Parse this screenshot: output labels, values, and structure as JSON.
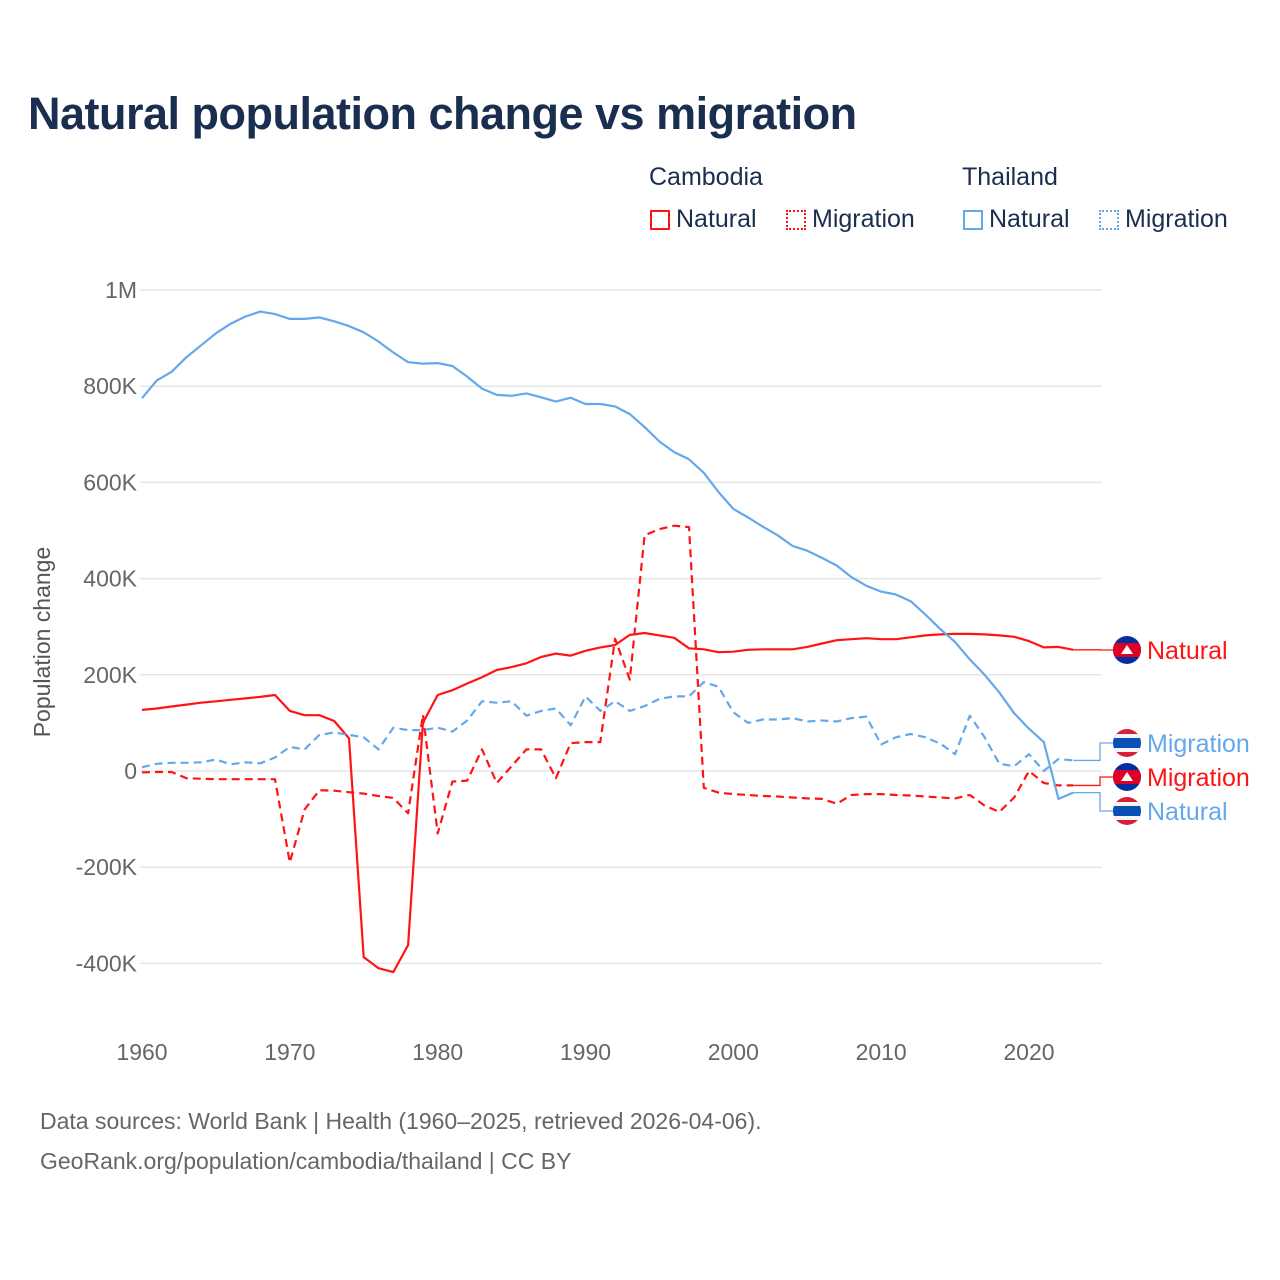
{
  "title": "Natural population change vs migration",
  "legend": {
    "groups": [
      {
        "name": "Cambodia",
        "items": [
          "Natural",
          "Migration"
        ]
      },
      {
        "name": "Thailand",
        "items": [
          "Natural",
          "Migration"
        ]
      }
    ]
  },
  "footer": {
    "line1": "Data sources: World Bank | Health (1960–2025, retrieved 2026-04-06).",
    "line2": "GeoRank.org/population/cambodia/thailand | CC BY"
  },
  "colors": {
    "cambodia": "#ff1414",
    "thailand": "#64a8ec",
    "grid": "#e6e6e6",
    "text": "#1a2e4f"
  },
  "chart_data": {
    "type": "line",
    "title": "Natural population change vs migration",
    "xlabel": "",
    "ylabel": "Population change",
    "xlim": [
      1960,
      2025
    ],
    "ylim": [
      -500000,
      1000000
    ],
    "x_ticks": [
      1960,
      1970,
      1980,
      1990,
      2000,
      2010,
      2020
    ],
    "x_tick_labels": [
      "1960",
      "1970",
      "1980",
      "1990",
      "2000",
      "2010",
      "2020"
    ],
    "y_ticks": [
      1000000,
      800000,
      600000,
      400000,
      200000,
      0,
      -200000,
      -400000
    ],
    "y_tick_labels": [
      "1M",
      "800K",
      "600K",
      "400K",
      "200K",
      "0",
      "-200K",
      "-400K"
    ],
    "grid": true,
    "legend_placement": "top-right",
    "x_start": 1960,
    "series": [
      {
        "name": "Cambodia Natural",
        "country": "Cambodia",
        "kind": "Natural",
        "label": "Natural",
        "color": "cambodia",
        "dash": false,
        "values": [
          127,
          130,
          134,
          138,
          142,
          145,
          148,
          151,
          154,
          158,
          125,
          116,
          116,
          104,
          68,
          -387,
          -410,
          -418,
          -362,
          100,
          158,
          168,
          182,
          195,
          210,
          216,
          224,
          237,
          244,
          240,
          250,
          257,
          262,
          283,
          287,
          282,
          277,
          255,
          253,
          247,
          248,
          252,
          253,
          253,
          253,
          258,
          265,
          272,
          274,
          276,
          274,
          274,
          278,
          282,
          284,
          285,
          285,
          284,
          282,
          279,
          270,
          257,
          258,
          252
        ]
      },
      {
        "name": "Cambodia Migration",
        "country": "Cambodia",
        "kind": "Migration",
        "label": "Migration",
        "color": "cambodia",
        "dash": true,
        "values": [
          -3,
          -2,
          -2,
          -15,
          -16,
          -17,
          -17,
          -17,
          -17,
          -17,
          -190,
          -80,
          -40,
          -41,
          -44,
          -47,
          -52,
          -56,
          -88,
          117,
          -130,
          -22,
          -20,
          45,
          -25,
          10,
          45,
          45,
          -15,
          58,
          60,
          60,
          275,
          190,
          490,
          503,
          510,
          507,
          -35,
          -45,
          -48,
          -50,
          -52,
          -53,
          -55,
          -57,
          -58,
          -68,
          -50,
          -48,
          -48,
          -50,
          -51,
          -53,
          -55,
          -57,
          -50,
          -72,
          -85,
          -55,
          0,
          -25,
          -30,
          -30
        ]
      },
      {
        "name": "Thailand Migration",
        "country": "Thailand",
        "kind": "Migration",
        "label": "Migration",
        "color": "thailand",
        "dash": true,
        "values": [
          8,
          15,
          17,
          17,
          18,
          24,
          14,
          18,
          16,
          28,
          50,
          45,
          75,
          80,
          75,
          70,
          45,
          90,
          85,
          85,
          90,
          82,
          105,
          145,
          142,
          145,
          115,
          125,
          130,
          95,
          155,
          125,
          145,
          125,
          135,
          150,
          155,
          155,
          185,
          175,
          122,
          100,
          107,
          107,
          110,
          103,
          105,
          103,
          110,
          113,
          55,
          70,
          77,
          70,
          57,
          35,
          115,
          70,
          15,
          10,
          35,
          0,
          25,
          22
        ]
      },
      {
        "name": "Thailand Natural",
        "country": "Thailand",
        "kind": "Natural",
        "label": "Natural",
        "color": "thailand",
        "dash": false,
        "values": [
          775,
          812,
          830,
          860,
          885,
          910,
          930,
          945,
          955,
          950,
          940,
          940,
          943,
          935,
          925,
          912,
          893,
          870,
          850,
          847,
          848,
          842,
          820,
          795,
          782,
          780,
          785,
          777,
          768,
          776,
          763,
          763,
          758,
          742,
          715,
          685,
          663,
          648,
          620,
          580,
          545,
          527,
          508,
          490,
          468,
          458,
          443,
          427,
          403,
          385,
          373,
          367,
          353,
          325,
          295,
          268,
          232,
          200,
          163,
          120,
          88,
          60,
          -58,
          -45
        ]
      }
    ],
    "value_unit": "thousands"
  }
}
